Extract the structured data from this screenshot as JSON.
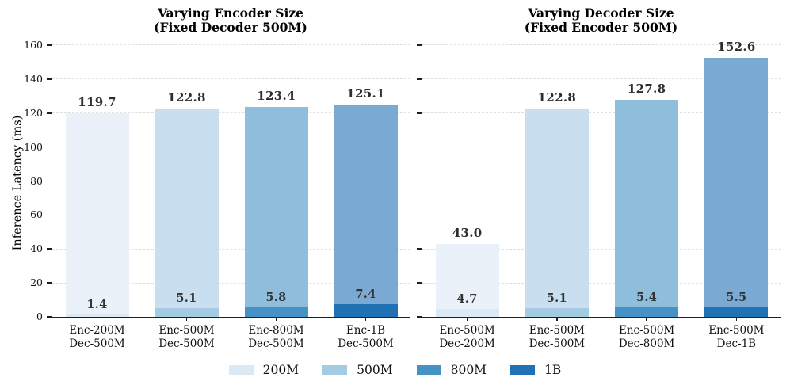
{
  "figure": {
    "background": "#ffffff",
    "y_axis_label": "Inference Latency (ms)"
  },
  "axis": {
    "ylim": [
      0,
      160
    ],
    "yticks": [
      0,
      20,
      40,
      60,
      80,
      100,
      120,
      140,
      160
    ],
    "grid": "horizontal dashed"
  },
  "palette": {
    "200M": {
      "solid": "#dbe9f5",
      "body": "#eaf1f9"
    },
    "500M": {
      "solid": "#a3cce3",
      "body": "#c9dfef"
    },
    "800M": {
      "solid": "#4592c7",
      "body": "#8fbedd"
    },
    "1B": {
      "solid": "#2171b5",
      "body": "#7aaad3"
    }
  },
  "legend": {
    "entries": [
      {
        "label": "200M",
        "color": "#dbe9f5"
      },
      {
        "label": "500M",
        "color": "#a3cce3"
      },
      {
        "label": "800M",
        "color": "#4592c7"
      },
      {
        "label": "1B",
        "color": "#2171b5"
      }
    ],
    "position": "bottom center"
  },
  "chart_data": [
    {
      "type": "bar",
      "title_line1": "Varying Encoder Size",
      "title_line2": "(Fixed Decoder 500M)",
      "ylabel": "Inference Latency (ms)",
      "ylim": [
        0,
        160
      ],
      "yticks": [
        0,
        20,
        40,
        60,
        80,
        100,
        120,
        140,
        160
      ],
      "categories": [
        "Enc-200M\nDec-500M",
        "Enc-500M\nDec-500M",
        "Enc-800M\nDec-500M",
        "Enc-1B\nDec-500M"
      ],
      "bars": [
        {
          "x_line1": "Enc-200M",
          "x_line2": "Dec-500M",
          "total": 119.7,
          "total_label": "119.7",
          "bottom_segment": 1.4,
          "segment_label": "1.4",
          "size": "200M"
        },
        {
          "x_line1": "Enc-500M",
          "x_line2": "Dec-500M",
          "total": 122.8,
          "total_label": "122.8",
          "bottom_segment": 5.1,
          "segment_label": "5.1",
          "size": "500M"
        },
        {
          "x_line1": "Enc-800M",
          "x_line2": "Dec-500M",
          "total": 123.4,
          "total_label": "123.4",
          "bottom_segment": 5.8,
          "segment_label": "5.8",
          "size": "800M"
        },
        {
          "x_line1": "Enc-1B",
          "x_line2": "Dec-500M",
          "total": 125.1,
          "total_label": "125.1",
          "bottom_segment": 7.4,
          "segment_label": "7.4",
          "size": "1B"
        }
      ]
    },
    {
      "type": "bar",
      "title_line1": "Varying Decoder Size",
      "title_line2": "(Fixed Encoder 500M)",
      "ylabel": "Inference Latency (ms)",
      "ylim": [
        0,
        160
      ],
      "yticks": [
        0,
        20,
        40,
        60,
        80,
        100,
        120,
        140,
        160
      ],
      "categories": [
        "Enc-500M\nDec-200M",
        "Enc-500M\nDec-500M",
        "Enc-500M\nDec-800M",
        "Enc-500M\nDec-1B"
      ],
      "bars": [
        {
          "x_line1": "Enc-500M",
          "x_line2": "Dec-200M",
          "total": 43.0,
          "total_label": "43.0",
          "bottom_segment": 4.7,
          "segment_label": "4.7",
          "size": "200M"
        },
        {
          "x_line1": "Enc-500M",
          "x_line2": "Dec-500M",
          "total": 122.8,
          "total_label": "122.8",
          "bottom_segment": 5.1,
          "segment_label": "5.1",
          "size": "500M"
        },
        {
          "x_line1": "Enc-500M",
          "x_line2": "Dec-800M",
          "total": 127.8,
          "total_label": "127.8",
          "bottom_segment": 5.4,
          "segment_label": "5.4",
          "size": "800M"
        },
        {
          "x_line1": "Enc-500M",
          "x_line2": "Dec-1B",
          "total": 152.6,
          "total_label": "152.6",
          "bottom_segment": 5.5,
          "segment_label": "5.5",
          "size": "1B"
        }
      ]
    }
  ]
}
